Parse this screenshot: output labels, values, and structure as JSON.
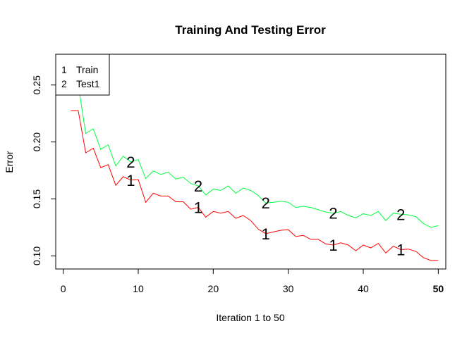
{
  "chart_data": {
    "type": "line",
    "title": "Training And Testing Error",
    "xlabel": "Iteration 1 to 50",
    "ylabel": "Error",
    "xlim": [
      -1,
      51
    ],
    "ylim": [
      0.0885,
      0.277
    ],
    "grid": false,
    "legend_position": "top-left",
    "x_ticks": [
      {
        "value": 0,
        "label": "0",
        "bold": false
      },
      {
        "value": 10,
        "label": "10",
        "bold": false
      },
      {
        "value": 20,
        "label": "20",
        "bold": false
      },
      {
        "value": 30,
        "label": "30",
        "bold": false
      },
      {
        "value": 40,
        "label": "40",
        "bold": false
      },
      {
        "value": 50,
        "label": "50",
        "bold": true
      }
    ],
    "y_ticks": [
      {
        "value": 0.1,
        "label": "0.10"
      },
      {
        "value": 0.15,
        "label": "0.15"
      },
      {
        "value": 0.2,
        "label": "0.20"
      },
      {
        "value": 0.25,
        "label": "0.25"
      }
    ],
    "legend": [
      {
        "symbol": "1",
        "label": "Train"
      },
      {
        "symbol": "2",
        "label": "Test1"
      }
    ],
    "series": [
      {
        "name": "Train",
        "symbol": "1",
        "color": "#ff0000",
        "x": [
          1,
          2,
          3,
          4,
          5,
          6,
          7,
          8,
          9,
          10,
          11,
          12,
          13,
          14,
          15,
          16,
          17,
          18,
          19,
          20,
          21,
          22,
          23,
          24,
          25,
          26,
          27,
          28,
          29,
          30,
          31,
          32,
          33,
          34,
          35,
          36,
          37,
          38,
          39,
          40,
          41,
          42,
          43,
          44,
          45,
          46,
          47,
          48,
          49,
          50
        ],
        "values": [
          0.2275,
          0.2275,
          0.1905,
          0.1945,
          0.1775,
          0.18,
          0.162,
          0.1695,
          0.1665,
          0.167,
          0.147,
          0.155,
          0.1525,
          0.1525,
          0.1475,
          0.1475,
          0.141,
          0.1425,
          0.134,
          0.139,
          0.1375,
          0.139,
          0.133,
          0.1355,
          0.131,
          0.1235,
          0.1195,
          0.121,
          0.1225,
          0.123,
          0.117,
          0.118,
          0.1145,
          0.1145,
          0.1105,
          0.1095,
          0.1115,
          0.1095,
          0.1045,
          0.1095,
          0.107,
          0.111,
          0.1025,
          0.1085,
          0.1055,
          0.106,
          0.104,
          0.0985,
          0.096,
          0.096
        ],
        "marker_points": [
          9,
          18,
          27,
          36,
          45
        ]
      },
      {
        "name": "Test1",
        "symbol": "2",
        "color": "#00ff40",
        "x": [
          1,
          2,
          3,
          4,
          5,
          6,
          7,
          8,
          9,
          10,
          11,
          12,
          13,
          14,
          15,
          16,
          17,
          18,
          19,
          20,
          21,
          22,
          23,
          24,
          25,
          26,
          27,
          28,
          29,
          30,
          31,
          32,
          33,
          34,
          35,
          36,
          37,
          38,
          39,
          40,
          41,
          42,
          43,
          44,
          45,
          46,
          47,
          48,
          49,
          50
        ],
        "values": [
          0.2505,
          0.2505,
          0.2075,
          0.2115,
          0.1935,
          0.1975,
          0.179,
          0.1875,
          0.1825,
          0.1845,
          0.168,
          0.1745,
          0.1715,
          0.1735,
          0.1675,
          0.169,
          0.1635,
          0.1615,
          0.1535,
          0.1585,
          0.1575,
          0.1615,
          0.155,
          0.1595,
          0.1575,
          0.153,
          0.1465,
          0.147,
          0.148,
          0.147,
          0.1425,
          0.1435,
          0.1425,
          0.1405,
          0.1385,
          0.1375,
          0.139,
          0.1355,
          0.1335,
          0.137,
          0.1355,
          0.139,
          0.131,
          0.1375,
          0.1365,
          0.136,
          0.1345,
          0.1285,
          0.125,
          0.1265
        ],
        "marker_points": [
          9,
          18,
          27,
          36,
          45
        ]
      }
    ]
  }
}
